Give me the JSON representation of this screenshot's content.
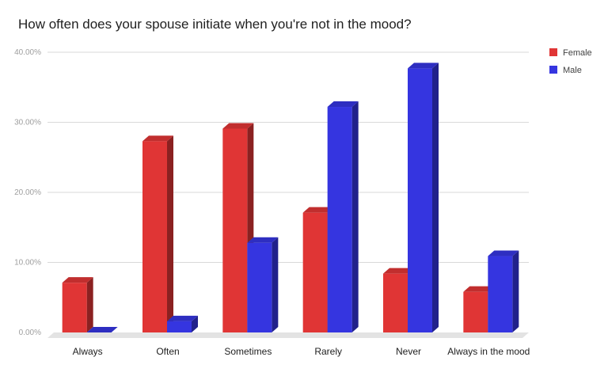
{
  "chart_data": {
    "type": "bar",
    "title": "How often does your spouse initiate when you're not in the mood?",
    "categories": [
      "Always",
      "Often",
      "Sometimes",
      "Rarely",
      "Never",
      "Always in the mood"
    ],
    "series": [
      {
        "name": "Female",
        "values": [
          7.1,
          27.3,
          29.1,
          17.1,
          8.4,
          5.8
        ],
        "color": "#e03535"
      },
      {
        "name": "Male",
        "values": [
          0.0,
          1.6,
          12.8,
          32.2,
          37.7,
          10.9
        ],
        "color": "#3535e0"
      }
    ],
    "ylim": [
      0,
      40
    ],
    "yticks": [
      "0.00%",
      "10.00%",
      "20.00%",
      "30.00%",
      "40.00%"
    ],
    "grid": true,
    "legend_position": "right",
    "three_d": true
  }
}
